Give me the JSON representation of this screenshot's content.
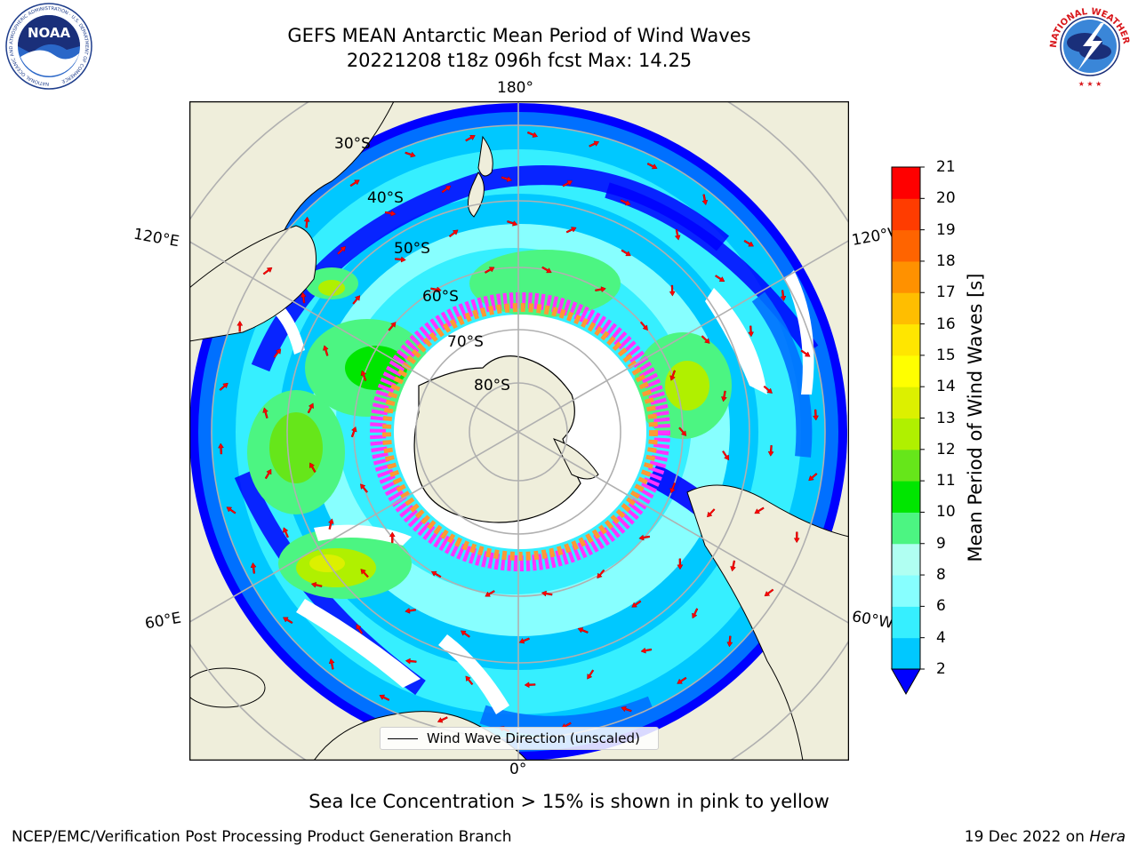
{
  "title_line1": "GEFS MEAN Antarctic Mean Period of Wind Waves",
  "title_line2": "20221208 t18z 096h fcst   Max: 14.25",
  "logos": {
    "left": {
      "name": "NOAA",
      "ring_text": "NATIONAL OCEANIC AND ATMOSPHERIC ADMINISTRATION · U.S. DEPARTMENT OF COMMERCE"
    },
    "right": {
      "name": "NATIONAL WEATHER SERVICE"
    }
  },
  "map": {
    "projection": "south polar stereographic",
    "longitude_labels": {
      "top": "180°",
      "bottom": "0°",
      "upper_left": "120°E",
      "upper_right": "120°W",
      "lower_left": "60°E",
      "lower_right": "60°W"
    },
    "latitude_labels": [
      "30°S",
      "40°S",
      "50°S",
      "60°S",
      "70°S",
      "80°S"
    ],
    "legend_label": "Wind Wave Direction (unscaled)",
    "colors": {
      "land": "#efeedb",
      "ocean_no_data": "#ffffff",
      "arrows": "#ff0000",
      "ice": [
        "#ff33ff",
        "#ff9933",
        "#ffff66"
      ]
    }
  },
  "colorbar": {
    "label": "Mean Period of Wind Waves [s]",
    "ticks": [
      "2",
      "4",
      "6",
      "8",
      "9",
      "10",
      "11",
      "12",
      "13",
      "14",
      "15",
      "16",
      "17",
      "18",
      "19",
      "20",
      "21"
    ],
    "colors": [
      "#0070ff",
      "#00c8ff",
      "#36efff",
      "#87ffff",
      "#b0fff2",
      "#4cf582",
      "#00e600",
      "#66e61a",
      "#b0f000",
      "#dcf000",
      "#ffff00",
      "#ffe600",
      "#ffbe00",
      "#ff9100",
      "#ff6400",
      "#ff3c00",
      "#ff0000"
    ],
    "under_color": "#0000ff"
  },
  "caption": "Sea Ice Concentration > 15% is shown in pink to yellow",
  "footer_left": "NCEP/EMC/Verification Post Processing Product Generation Branch",
  "footer_right_date": "19 Dec 2022 on",
  "footer_right_machine": "Hera"
}
